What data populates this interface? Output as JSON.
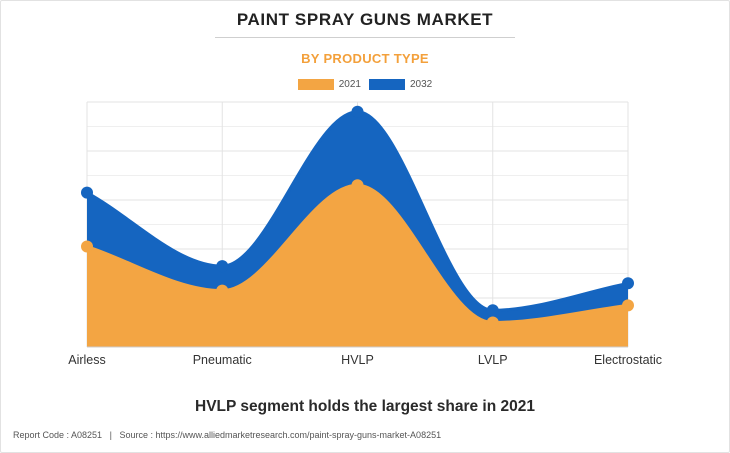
{
  "header": {
    "title": "PAINT SPRAY GUNS MARKET",
    "subtitle": "BY PRODUCT TYPE"
  },
  "caption": "HVLP segment holds the largest share in 2021",
  "footer": {
    "report_code": "Report Code : A08251",
    "separator": "|",
    "source": "Source : https://www.alliedmarketresearch.com/paint-spray-guns-market-A08251"
  },
  "colors": {
    "series_2021": "#f3a543",
    "series_2032": "#1565c0",
    "grid": "#e3e3e3",
    "subtitle": "#f3a03b"
  },
  "chart_data": {
    "type": "area",
    "stacked": false,
    "smooth": true,
    "categories": [
      "Airless",
      "Pneumatic",
      "HVLP",
      "LVLP",
      "Electrostatic"
    ],
    "series": [
      {
        "name": "2021",
        "values": [
          4.1,
          2.3,
          6.6,
          1.0,
          1.7
        ]
      },
      {
        "name": "2032",
        "values": [
          6.3,
          3.3,
          9.6,
          1.5,
          2.6
        ]
      }
    ],
    "ylim": [
      0,
      10
    ],
    "grid": true,
    "y_ticks_visible": false,
    "legend_position": "top-center",
    "title": "",
    "xlabel": "",
    "ylabel": ""
  }
}
